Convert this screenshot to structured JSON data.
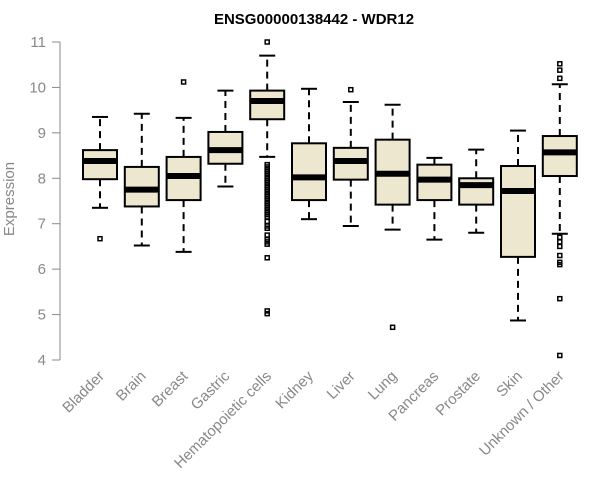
{
  "chart_data": {
    "type": "boxplot",
    "title": "ENSG00000138442 - WDR12",
    "xlabel": "",
    "ylabel": "Expression",
    "ylim": [
      4,
      11
    ],
    "yticks": [
      "4",
      "5",
      "6",
      "7",
      "8",
      "9",
      "10",
      "11"
    ],
    "categories": [
      "Bladder",
      "Brain",
      "Breast",
      "Gastric",
      "Hematopoietic cells",
      "Kidney",
      "Liver",
      "Lung",
      "Pancreas",
      "Prostate",
      "Skin",
      "Unknown / Other"
    ],
    "boxes": [
      {
        "min": 7.35,
        "q1": 7.98,
        "median": 8.38,
        "q3": 8.62,
        "max": 9.35,
        "outliers": [
          6.67
        ]
      },
      {
        "min": 6.52,
        "q1": 7.38,
        "median": 7.75,
        "q3": 8.25,
        "max": 9.42,
        "outliers": []
      },
      {
        "min": 6.38,
        "q1": 7.52,
        "median": 8.05,
        "q3": 8.47,
        "max": 9.33,
        "outliers": [
          10.12
        ]
      },
      {
        "min": 7.82,
        "q1": 8.32,
        "median": 8.62,
        "q3": 9.02,
        "max": 9.93,
        "outliers": []
      },
      {
        "min": 8.47,
        "q1": 9.3,
        "median": 9.7,
        "q3": 9.93,
        "max": 10.7,
        "outliers": [
          11.0,
          8.3,
          8.25,
          8.2,
          8.15,
          8.1,
          8.05,
          8.0,
          7.95,
          7.9,
          7.85,
          7.8,
          7.75,
          7.7,
          7.65,
          7.6,
          7.55,
          7.5,
          7.45,
          7.4,
          7.35,
          7.3,
          7.25,
          7.2,
          7.15,
          7.05,
          6.95,
          6.9,
          6.75,
          6.65,
          6.6,
          6.55,
          6.25,
          5.08,
          5.02
        ]
      },
      {
        "min": 7.1,
        "q1": 7.52,
        "median": 8.02,
        "q3": 8.77,
        "max": 9.97,
        "outliers": []
      },
      {
        "min": 6.95,
        "q1": 7.97,
        "median": 8.38,
        "q3": 8.67,
        "max": 9.68,
        "outliers": [
          9.95
        ]
      },
      {
        "min": 6.87,
        "q1": 7.42,
        "median": 8.1,
        "q3": 8.85,
        "max": 9.62,
        "outliers": [
          4.72
        ]
      },
      {
        "min": 6.65,
        "q1": 7.52,
        "median": 7.97,
        "q3": 8.3,
        "max": 8.45,
        "outliers": []
      },
      {
        "min": 6.8,
        "q1": 7.42,
        "median": 7.85,
        "q3": 8.0,
        "max": 8.63,
        "outliers": []
      },
      {
        "min": 4.87,
        "q1": 6.27,
        "median": 7.72,
        "q3": 8.27,
        "max": 9.05,
        "outliers": []
      },
      {
        "min": 6.78,
        "q1": 8.05,
        "median": 8.57,
        "q3": 8.93,
        "max": 10.07,
        "outliers": [
          10.52,
          10.38,
          10.2,
          6.7,
          6.6,
          6.5,
          6.3,
          6.15,
          6.1,
          5.35,
          4.1
        ]
      }
    ]
  }
}
